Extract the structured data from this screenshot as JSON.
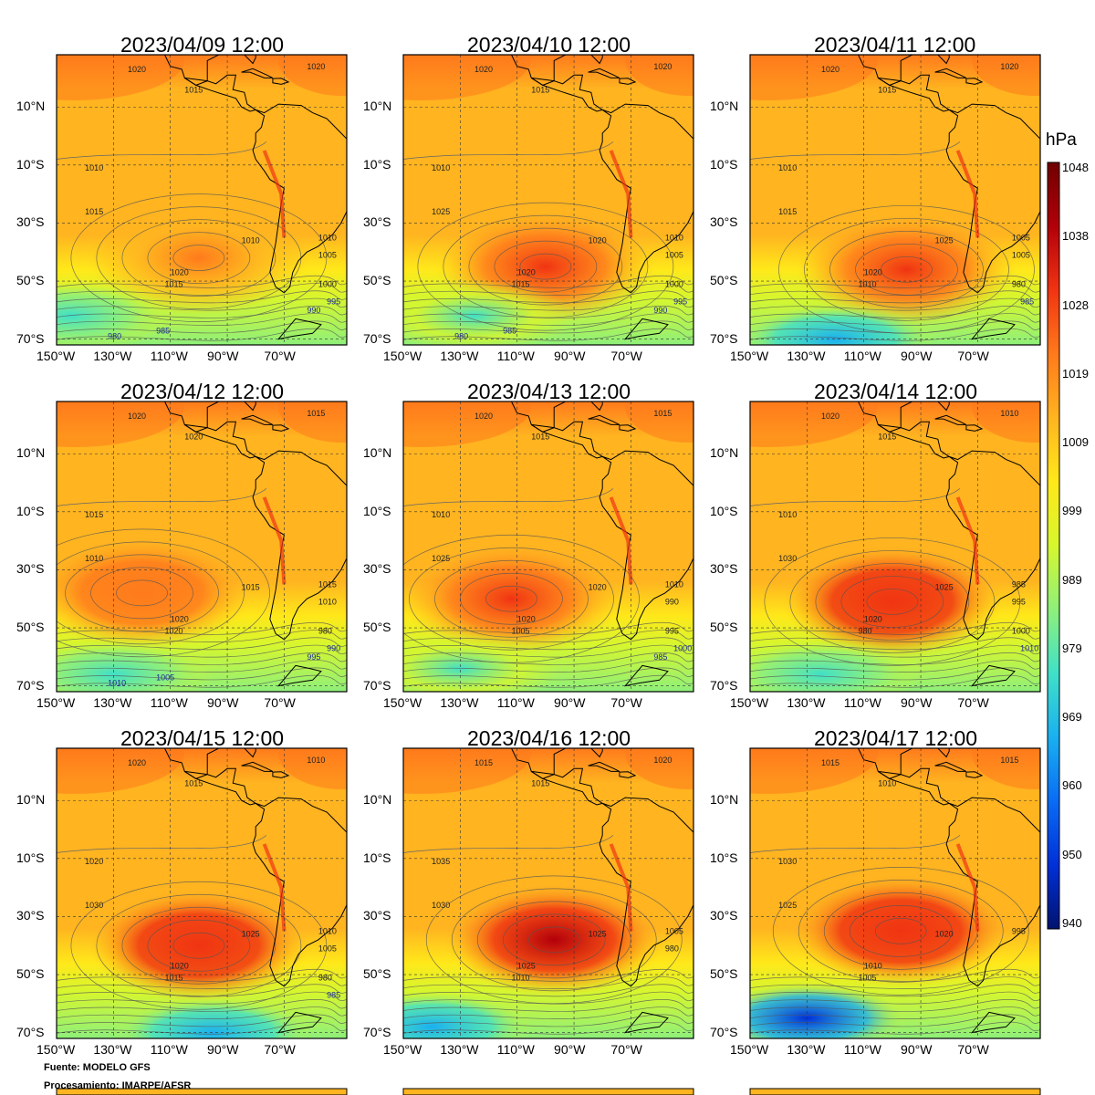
{
  "panels": [
    {
      "title": "2023/04/09 12:00",
      "contour_labels": [
        "1020",
        "1015",
        "1020",
        "1010",
        "1015",
        "1010",
        "1020",
        "1015",
        "1010",
        "1005",
        "1000",
        "995",
        "990",
        "985",
        "980"
      ],
      "field": {
        "high_center_lon": -100,
        "high_center_lat": -42,
        "high_value": 1022,
        "low_center_lon": -145,
        "low_center_lat": -62,
        "low_value": 975
      }
    },
    {
      "title": "2023/04/10 12:00",
      "contour_labels": [
        "1020",
        "1015",
        "1020",
        "1010",
        "1025",
        "1020",
        "1020",
        "1015",
        "1010",
        "1005",
        "1000",
        "995",
        "990",
        "985",
        "980"
      ],
      "field": {
        "high_center_lon": -100,
        "high_center_lat": -45,
        "high_value": 1026,
        "low_center_lon": -125,
        "low_center_lat": -62,
        "low_value": 978
      }
    },
    {
      "title": "2023/04/11 12:00",
      "contour_labels": [
        "1020",
        "1015",
        "1020",
        "1010",
        "1015",
        "1025",
        "1020",
        "1010",
        "1005",
        "1005",
        "980",
        "985"
      ],
      "field": {
        "high_center_lon": -95,
        "high_center_lat": -46,
        "high_value": 1027,
        "low_center_lon": -120,
        "low_center_lat": -70,
        "low_value": 968
      }
    },
    {
      "title": "2023/04/12 12:00",
      "contour_labels": [
        "1020",
        "1020",
        "1015",
        "1015",
        "1010",
        "1015",
        "1020",
        "1020",
        "1015",
        "1010",
        "980",
        "990",
        "995",
        "1005",
        "1010"
      ],
      "field": {
        "high_center_lon": -120,
        "high_center_lat": -38,
        "high_value": 1023,
        "low_center_lon": -130,
        "low_center_lat": -66,
        "low_value": 976
      }
    },
    {
      "title": "2023/04/13 12:00",
      "contour_labels": [
        "1020",
        "1015",
        "1015",
        "1010",
        "1025",
        "1020",
        "1020",
        "1005",
        "1010",
        "990",
        "995",
        "1000",
        "985"
      ],
      "field": {
        "high_center_lon": -112,
        "high_center_lat": -40,
        "high_value": 1028,
        "low_center_lon": -130,
        "low_center_lat": -64,
        "low_value": 980
      }
    },
    {
      "title": "2023/04/14 12:00",
      "contour_labels": [
        "1020",
        "1015",
        "1010",
        "1010",
        "1030",
        "1025",
        "1020",
        "980",
        "985",
        "995",
        "1000",
        "1010"
      ],
      "field": {
        "high_center_lon": -100,
        "high_center_lat": -41,
        "high_value": 1032,
        "low_center_lon": -125,
        "low_center_lat": -66,
        "low_value": 974
      }
    },
    {
      "title": "2023/04/15 12:00",
      "contour_labels": [
        "1020",
        "1015",
        "1010",
        "1020",
        "1030",
        "1025",
        "1020",
        "1015",
        "1010",
        "1005",
        "980",
        "985"
      ],
      "field": {
        "high_center_lon": -100,
        "high_center_lat": -40,
        "high_value": 1034,
        "low_center_lon": -95,
        "low_center_lat": -70,
        "low_value": 965
      }
    },
    {
      "title": "2023/04/16 12:00",
      "contour_labels": [
        "1015",
        "1015",
        "1020",
        "1035",
        "1030",
        "1025",
        "1025",
        "1010",
        "1005",
        "980"
      ],
      "field": {
        "high_center_lon": -97,
        "high_center_lat": -38,
        "high_value": 1037,
        "low_center_lon": -140,
        "low_center_lat": -68,
        "low_value": 967
      }
    },
    {
      "title": "2023/04/17 12:00",
      "contour_labels": [
        "1015",
        "1010",
        "1015",
        "1030",
        "1025",
        "1020",
        "1010",
        "1005",
        "995"
      ],
      "field": {
        "high_center_lon": -97,
        "high_center_lat": -35,
        "high_value": 1032,
        "low_center_lon": -130,
        "low_center_lat": -65,
        "low_value": 952
      }
    }
  ],
  "axes": {
    "x_ticks": [
      "150°W",
      "130°W",
      "110°W",
      "90°W",
      "70°W"
    ],
    "x_tick_values": [
      -150,
      -130,
      -110,
      -90,
      -70
    ],
    "y_ticks": [
      "10°N",
      "10°S",
      "30°S",
      "50°S",
      "70°S"
    ],
    "y_tick_values": [
      10,
      -10,
      -30,
      -50,
      -70
    ],
    "lon_range": [
      -150,
      -48
    ],
    "lat_range": [
      -72,
      28
    ]
  },
  "colorbar": {
    "unit": "hPa",
    "labels": [
      "1048",
      "1038",
      "1028",
      "1019",
      "1009",
      "999",
      "989",
      "979",
      "969",
      "960",
      "950",
      "940"
    ],
    "range": [
      940,
      1048
    ],
    "colors": [
      "#00136e",
      "#0030d8",
      "#0a6cf4",
      "#1ab0f0",
      "#40e0c8",
      "#8ef07a",
      "#d6f62e",
      "#ffe81a",
      "#ffb420",
      "#ff7a1c",
      "#f03412",
      "#b2000a",
      "#700000"
    ]
  },
  "footer": {
    "source": "Fuente: MODELO GFS",
    "processing": "Procesamiento: IMARPE/AFSR"
  }
}
